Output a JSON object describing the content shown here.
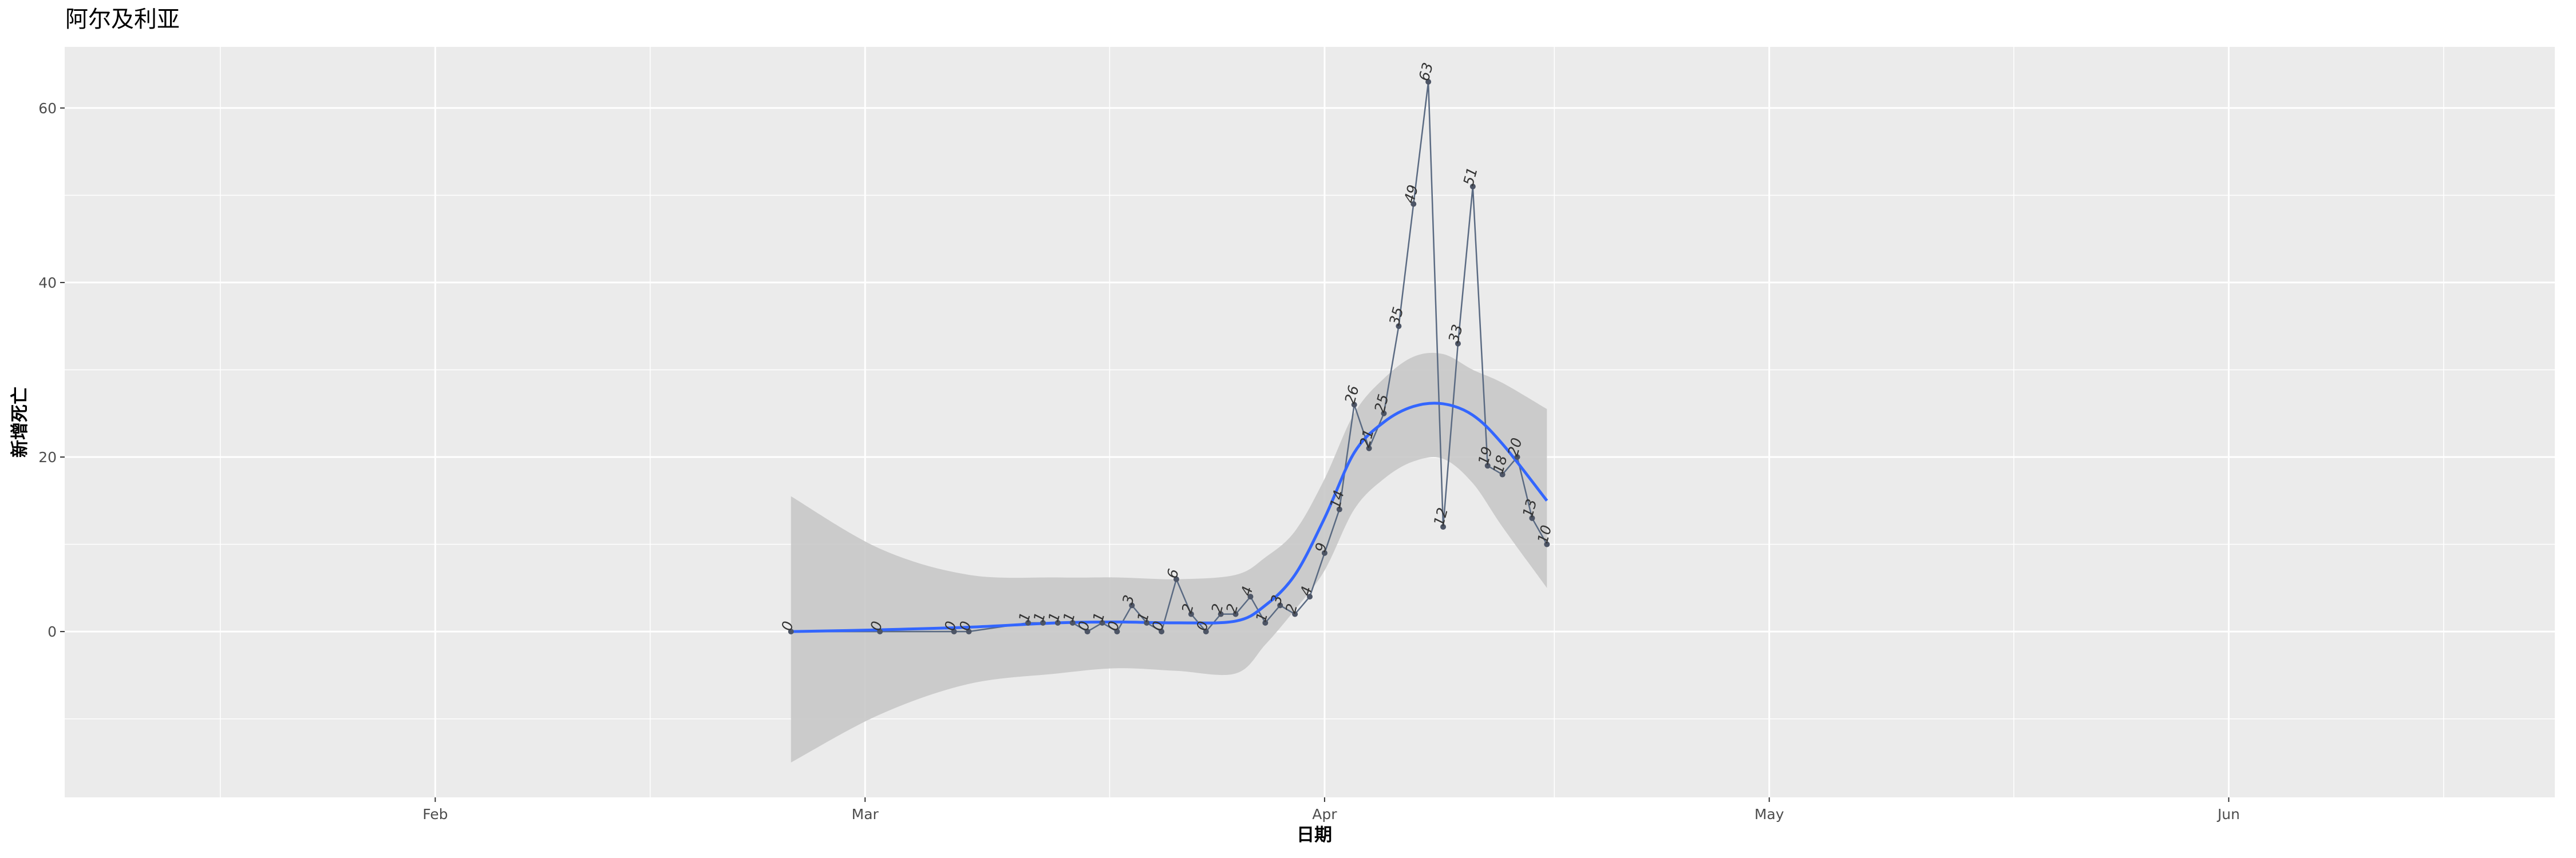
{
  "chart_data": {
    "type": "line",
    "title": "阿尔及利亚",
    "xlabel": "日期",
    "ylabel": "新增死亡",
    "x_axis": "date",
    "xlim": [
      "2020-01-07",
      "2020-06-23"
    ],
    "ylim": [
      -19,
      67
    ],
    "x_ticks": [
      {
        "value": "2020-02-01",
        "label": "Feb"
      },
      {
        "value": "2020-03-01",
        "label": "Mar"
      },
      {
        "value": "2020-04-01",
        "label": "Apr"
      },
      {
        "value": "2020-05-01",
        "label": "May"
      },
      {
        "value": "2020-06-01",
        "label": "Jun"
      }
    ],
    "y_ticks": [
      0,
      20,
      40,
      60
    ],
    "grid": true,
    "series": [
      {
        "color": "#5a6a82",
        "x": [
          "2020-02-25",
          "2020-03-02",
          "2020-03-07",
          "2020-03-08",
          "2020-03-12",
          "2020-03-13",
          "2020-03-14",
          "2020-03-15",
          "2020-03-16",
          "2020-03-17",
          "2020-03-18",
          "2020-03-19",
          "2020-03-20",
          "2020-03-21",
          "2020-03-22",
          "2020-03-23",
          "2020-03-24",
          "2020-03-25",
          "2020-03-26",
          "2020-03-27",
          "2020-03-28",
          "2020-03-29",
          "2020-03-30",
          "2020-03-31",
          "2020-04-01",
          "2020-04-02",
          "2020-04-03",
          "2020-04-04",
          "2020-04-05",
          "2020-04-06",
          "2020-04-07",
          "2020-04-08",
          "2020-04-09",
          "2020-04-10",
          "2020-04-11",
          "2020-04-12",
          "2020-04-13",
          "2020-04-14",
          "2020-04-15",
          "2020-04-16"
        ],
        "values": [
          0,
          0,
          0,
          0,
          1,
          1,
          1,
          1,
          0,
          1,
          0,
          3,
          1,
          0,
          6,
          2,
          0,
          2,
          2,
          4,
          1,
          3,
          2,
          4,
          9,
          14,
          26,
          21,
          25,
          35,
          49,
          63,
          12,
          33,
          51,
          19,
          18,
          20,
          13,
          10
        ]
      }
    ],
    "smooth": {
      "color": "#3366ff",
      "band_color": "#c8c8c8",
      "x": [
        "2020-02-25",
        "2020-03-02",
        "2020-03-08",
        "2020-03-14",
        "2020-03-18",
        "2020-03-22",
        "2020-03-26",
        "2020-03-28",
        "2020-03-30",
        "2020-04-01",
        "2020-04-03",
        "2020-04-05",
        "2020-04-07",
        "2020-04-09",
        "2020-04-11",
        "2020-04-13",
        "2020-04-16"
      ],
      "values": [
        0,
        0.2,
        0.5,
        1.0,
        1.1,
        1.0,
        1.2,
        3.0,
        6.5,
        13,
        20.5,
        24,
        25.8,
        26.1,
        24.8,
        21.5,
        15
      ],
      "lower": [
        -15,
        -9.5,
        -6,
        -4.8,
        -4.2,
        -4.5,
        -4.8,
        -1.5,
        2.5,
        7,
        14,
        17.5,
        19.5,
        19.8,
        17,
        12,
        5
      ],
      "upper": [
        15.5,
        9.5,
        6.5,
        6.2,
        6.2,
        6.0,
        6.5,
        8.5,
        11.5,
        17.5,
        25,
        29,
        31.5,
        31.8,
        30,
        28.5,
        25.5
      ]
    }
  }
}
